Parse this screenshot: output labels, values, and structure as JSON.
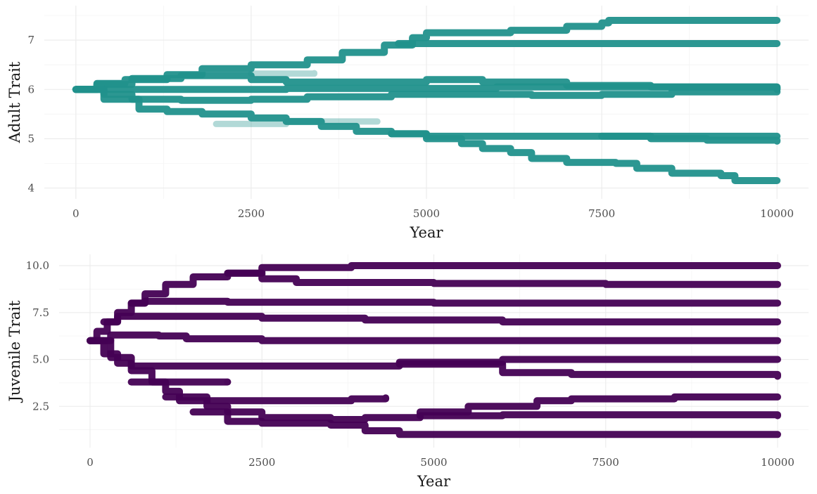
{
  "chart_data": [
    {
      "type": "line",
      "xlabel": "Year",
      "ylabel": "Adult Trait",
      "xlim": [
        -450,
        10450
      ],
      "ylim": [
        3.78,
        7.7
      ],
      "xticks": [
        0,
        2500,
        5000,
        7500,
        10000
      ],
      "xtick_labels": [
        "0",
        "2500",
        "5000",
        "7500",
        "10000"
      ],
      "yticks": [
        4,
        5,
        6,
        7
      ],
      "ytick_labels": [
        "4",
        "5",
        "6",
        "7"
      ],
      "grid": true,
      "color": "#21918c",
      "series": [
        {
          "points": [
            [
              0,
              6.0
            ],
            [
              300,
              6.12
            ],
            [
              700,
              6.2
            ],
            [
              1300,
              6.3
            ],
            [
              1800,
              6.42
            ],
            [
              2500,
              6.5
            ],
            [
              3300,
              6.6
            ],
            [
              3800,
              6.75
            ],
            [
              4400,
              6.9
            ],
            [
              4800,
              7.05
            ],
            [
              5000,
              7.15
            ],
            [
              6200,
              7.2
            ],
            [
              7000,
              7.28
            ],
            [
              7500,
              7.35
            ],
            [
              7600,
              7.4
            ],
            [
              10000,
              7.4
            ]
          ]
        },
        {
          "points": [
            [
              4600,
              6.93
            ],
            [
              5000,
              6.93
            ],
            [
              10000,
              6.93
            ]
          ]
        },
        {
          "points": [
            [
              0,
              6.0
            ],
            [
              300,
              6.1
            ],
            [
              800,
              6.22
            ],
            [
              1500,
              6.28
            ],
            [
              2500,
              6.2
            ],
            [
              3000,
              6.15
            ],
            [
              5000,
              6.2
            ],
            [
              5800,
              6.15
            ],
            [
              7000,
              6.08
            ],
            [
              8200,
              6.05
            ],
            [
              10000,
              6.0
            ]
          ]
        },
        {
          "points": [
            [
              0,
              6.0
            ],
            [
              500,
              6.0
            ],
            [
              3000,
              6.02
            ],
            [
              6000,
              6.05
            ],
            [
              10000,
              6.0
            ]
          ]
        },
        {
          "points": [
            [
              0,
              6.0
            ],
            [
              400,
              5.9
            ],
            [
              800,
              5.8
            ],
            [
              1500,
              5.78
            ],
            [
              2500,
              5.8
            ],
            [
              3300,
              5.85
            ],
            [
              4500,
              5.9
            ],
            [
              6500,
              5.88
            ],
            [
              7500,
              5.9
            ],
            [
              8500,
              5.95
            ],
            [
              10000,
              5.95
            ]
          ]
        },
        {
          "points": [
            [
              0,
              6.0
            ],
            [
              400,
              5.8
            ],
            [
              900,
              5.6
            ],
            [
              1300,
              5.55
            ],
            [
              1800,
              5.5
            ],
            [
              2500,
              5.42
            ],
            [
              3000,
              5.35
            ],
            [
              3500,
              5.25
            ],
            [
              4000,
              5.15
            ],
            [
              4500,
              5.1
            ],
            [
              5000,
              5.05
            ],
            [
              6000,
              5.05
            ],
            [
              7500,
              5.05
            ],
            [
              10000,
              5.05
            ]
          ]
        },
        {
          "points": [
            [
              7500,
              5.05
            ],
            [
              8200,
              5.0
            ],
            [
              9000,
              4.97
            ],
            [
              10000,
              4.95
            ]
          ]
        },
        {
          "points": [
            [
              4500,
              5.1
            ],
            [
              5000,
              5.0
            ],
            [
              5500,
              4.9
            ],
            [
              5800,
              4.8
            ],
            [
              6200,
              4.72
            ],
            [
              6500,
              4.6
            ],
            [
              7000,
              4.52
            ],
            [
              7700,
              4.5
            ],
            [
              8000,
              4.4
            ],
            [
              8500,
              4.3
            ],
            [
              9200,
              4.25
            ],
            [
              9400,
              4.15
            ],
            [
              10000,
              4.15
            ]
          ]
        },
        {
          "points": [
            [
              2000,
              5.3
            ],
            [
              3000,
              5.35
            ],
            [
              3800,
              5.35
            ],
            [
              4300,
              5.35
            ]
          ],
          "faded": true
        },
        {
          "points": [
            [
              2500,
              6.32
            ],
            [
              3400,
              6.33
            ]
          ],
          "faded": true
        }
      ]
    },
    {
      "type": "line",
      "xlabel": "Year",
      "ylabel": "Juvenile Trait",
      "xlim": [
        -450,
        10450
      ],
      "ylim": [
        0.3,
        10.6
      ],
      "xticks": [
        0,
        2500,
        5000,
        7500,
        10000
      ],
      "xtick_labels": [
        "0",
        "2500",
        "5000",
        "7500",
        "10000"
      ],
      "yticks": [
        2.5,
        5.0,
        7.5,
        10.0
      ],
      "ytick_labels": [
        "2.5",
        "5.0",
        "7.5",
        "10.0"
      ],
      "grid": true,
      "color": "#440154",
      "series": [
        {
          "points": [
            [
              0,
              6.0
            ],
            [
              100,
              6.5
            ],
            [
              250,
              7.0
            ],
            [
              400,
              7.5
            ],
            [
              600,
              8.0
            ],
            [
              800,
              8.5
            ],
            [
              1100,
              9.0
            ],
            [
              1500,
              9.4
            ],
            [
              2000,
              9.6
            ],
            [
              2500,
              9.9
            ],
            [
              3800,
              10.0
            ],
            [
              10000,
              10.0
            ]
          ]
        },
        {
          "points": [
            [
              2000,
              9.6
            ],
            [
              2500,
              9.3
            ],
            [
              3000,
              9.1
            ],
            [
              5000,
              9.05
            ],
            [
              7500,
              9.0
            ],
            [
              10000,
              9.0
            ]
          ]
        },
        {
          "points": [
            [
              600,
              8.0
            ],
            [
              800,
              8.1
            ],
            [
              2000,
              8.05
            ],
            [
              5000,
              8.0
            ],
            [
              10000,
              8.0
            ]
          ]
        },
        {
          "points": [
            [
              200,
              7.0
            ],
            [
              400,
              7.3
            ],
            [
              1000,
              7.3
            ],
            [
              2500,
              7.2
            ],
            [
              4000,
              7.1
            ],
            [
              6000,
              7.0
            ],
            [
              10000,
              7.0
            ]
          ]
        },
        {
          "points": [
            [
              0,
              6.0
            ],
            [
              300,
              6.3
            ],
            [
              1000,
              6.25
            ],
            [
              1400,
              6.1
            ],
            [
              2500,
              6.0
            ],
            [
              10000,
              6.0
            ]
          ]
        },
        {
          "points": [
            [
              0,
              6.0
            ],
            [
              200,
              5.3
            ],
            [
              400,
              4.8
            ],
            [
              600,
              4.65
            ],
            [
              1500,
              4.65
            ],
            [
              3000,
              4.65
            ],
            [
              4500,
              4.85
            ],
            [
              6000,
              5.0
            ],
            [
              8000,
              5.0
            ],
            [
              10000,
              5.0
            ]
          ]
        },
        {
          "points": [
            [
              4500,
              4.75
            ],
            [
              6000,
              4.3
            ],
            [
              7000,
              4.2
            ],
            [
              10000,
              4.1
            ]
          ]
        },
        {
          "points": [
            [
              0,
              6.0
            ],
            [
              300,
              5.1
            ],
            [
              600,
              4.4
            ],
            [
              900,
              3.8
            ],
            [
              1100,
              3.3
            ],
            [
              1300,
              2.8
            ],
            [
              2500,
              2.8
            ],
            [
              3500,
              2.8
            ],
            [
              3800,
              2.9
            ],
            [
              4300,
              2.95
            ]
          ],
          "faded_end": true
        },
        {
          "points": [
            [
              600,
              3.8
            ],
            [
              1300,
              3.8
            ],
            [
              2000,
              3.8
            ]
          ],
          "faded_end": true
        },
        {
          "points": [
            [
              1100,
              3.0
            ],
            [
              1700,
              2.5
            ],
            [
              2000,
              2.2
            ],
            [
              2500,
              1.9
            ],
            [
              3500,
              1.8
            ],
            [
              4000,
              1.9
            ],
            [
              4800,
              2.2
            ],
            [
              5500,
              2.5
            ],
            [
              6500,
              2.8
            ],
            [
              7000,
              2.9
            ],
            [
              8500,
              3.0
            ],
            [
              10000,
              3.0
            ]
          ]
        },
        {
          "points": [
            [
              1500,
              2.2
            ],
            [
              2000,
              1.7
            ],
            [
              2500,
              1.6
            ],
            [
              3500,
              1.5
            ],
            [
              4000,
              1.2
            ],
            [
              4500,
              1.0
            ],
            [
              10000,
              1.0
            ]
          ]
        },
        {
          "points": [
            [
              4800,
              2.0
            ],
            [
              6000,
              2.05
            ],
            [
              7500,
              2.05
            ],
            [
              10000,
              2.0
            ]
          ]
        }
      ]
    }
  ]
}
